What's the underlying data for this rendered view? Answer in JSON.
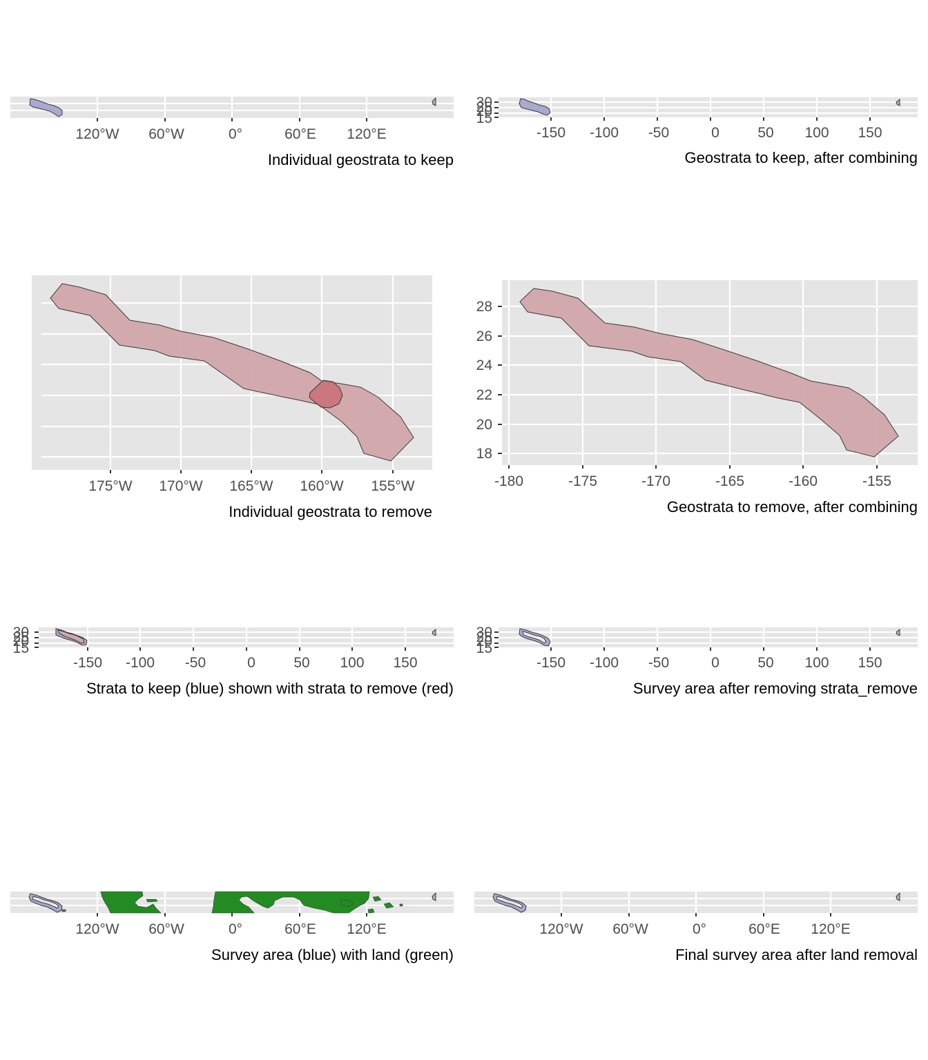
{
  "figure": {
    "colors": {
      "panel_background": "#e5e5e5",
      "grid": "#ffffff",
      "keep_fill": "#a9a9d2",
      "remove_fill": "#d1a6aa",
      "remove_overlap_fill": "#c7656d",
      "land_fill": "#228b22",
      "outline": "#3a3a3a",
      "tick_text": "#4d4d4d"
    },
    "panels": [
      {
        "id": "p1",
        "caption": "Individual geostrata to keep",
        "x_ticks": [
          "120°W",
          "60°W",
          "0°",
          "60°E",
          "120°E"
        ],
        "y_ticks": [],
        "layers": [
          "keep-strata"
        ]
      },
      {
        "id": "p2",
        "caption": "Geostrata to keep, after combining",
        "x_ticks": [
          "-150",
          "-100",
          "-50",
          "0",
          "50",
          "100",
          "150"
        ],
        "y_ticks": [
          "30",
          "25",
          "20",
          "15"
        ],
        "layers": [
          "keep-strata-combined"
        ]
      },
      {
        "id": "p3",
        "caption": "Individual geostrata to remove",
        "x_ticks": [
          "175°W",
          "170°W",
          "165°W",
          "160°W",
          "155°W"
        ],
        "y_ticks": [],
        "layers": [
          "remove-strata",
          "remove-strata-overlap"
        ]
      },
      {
        "id": "p4",
        "caption": "Geostrata to remove, after combining",
        "x_ticks": [
          "-180",
          "-175",
          "-170",
          "-165",
          "-160",
          "-155"
        ],
        "y_ticks": [
          "28",
          "26",
          "24",
          "22",
          "20",
          "18"
        ],
        "layers": [
          "remove-strata-combined"
        ]
      },
      {
        "id": "p5",
        "caption": "Strata to keep (blue) shown with strata to remove (red)",
        "x_ticks": [
          "-150",
          "-100",
          "-50",
          "0",
          "50",
          "100",
          "150"
        ],
        "y_ticks": [
          "30",
          "25",
          "20",
          "15"
        ],
        "layers": [
          "keep-strata",
          "remove-strata"
        ]
      },
      {
        "id": "p6",
        "caption": "Survey area after removing strata_remove",
        "x_ticks": [
          "-150",
          "-100",
          "-50",
          "0",
          "50",
          "100",
          "150"
        ],
        "y_ticks": [
          "30",
          "25",
          "20",
          "15"
        ],
        "layers": [
          "survey-area"
        ]
      },
      {
        "id": "p7",
        "caption": "Survey area (blue) with land (green)",
        "x_ticks": [
          "120°W",
          "60°W",
          "0°",
          "60°E",
          "120°E"
        ],
        "y_ticks": [],
        "layers": [
          "survey-area",
          "land"
        ]
      },
      {
        "id": "p8",
        "caption": "Final survey area after land removal",
        "x_ticks": [
          "120°W",
          "60°W",
          "0°",
          "60°E",
          "120°E"
        ],
        "y_ticks": [],
        "layers": [
          "final-survey-area"
        ]
      }
    ]
  }
}
